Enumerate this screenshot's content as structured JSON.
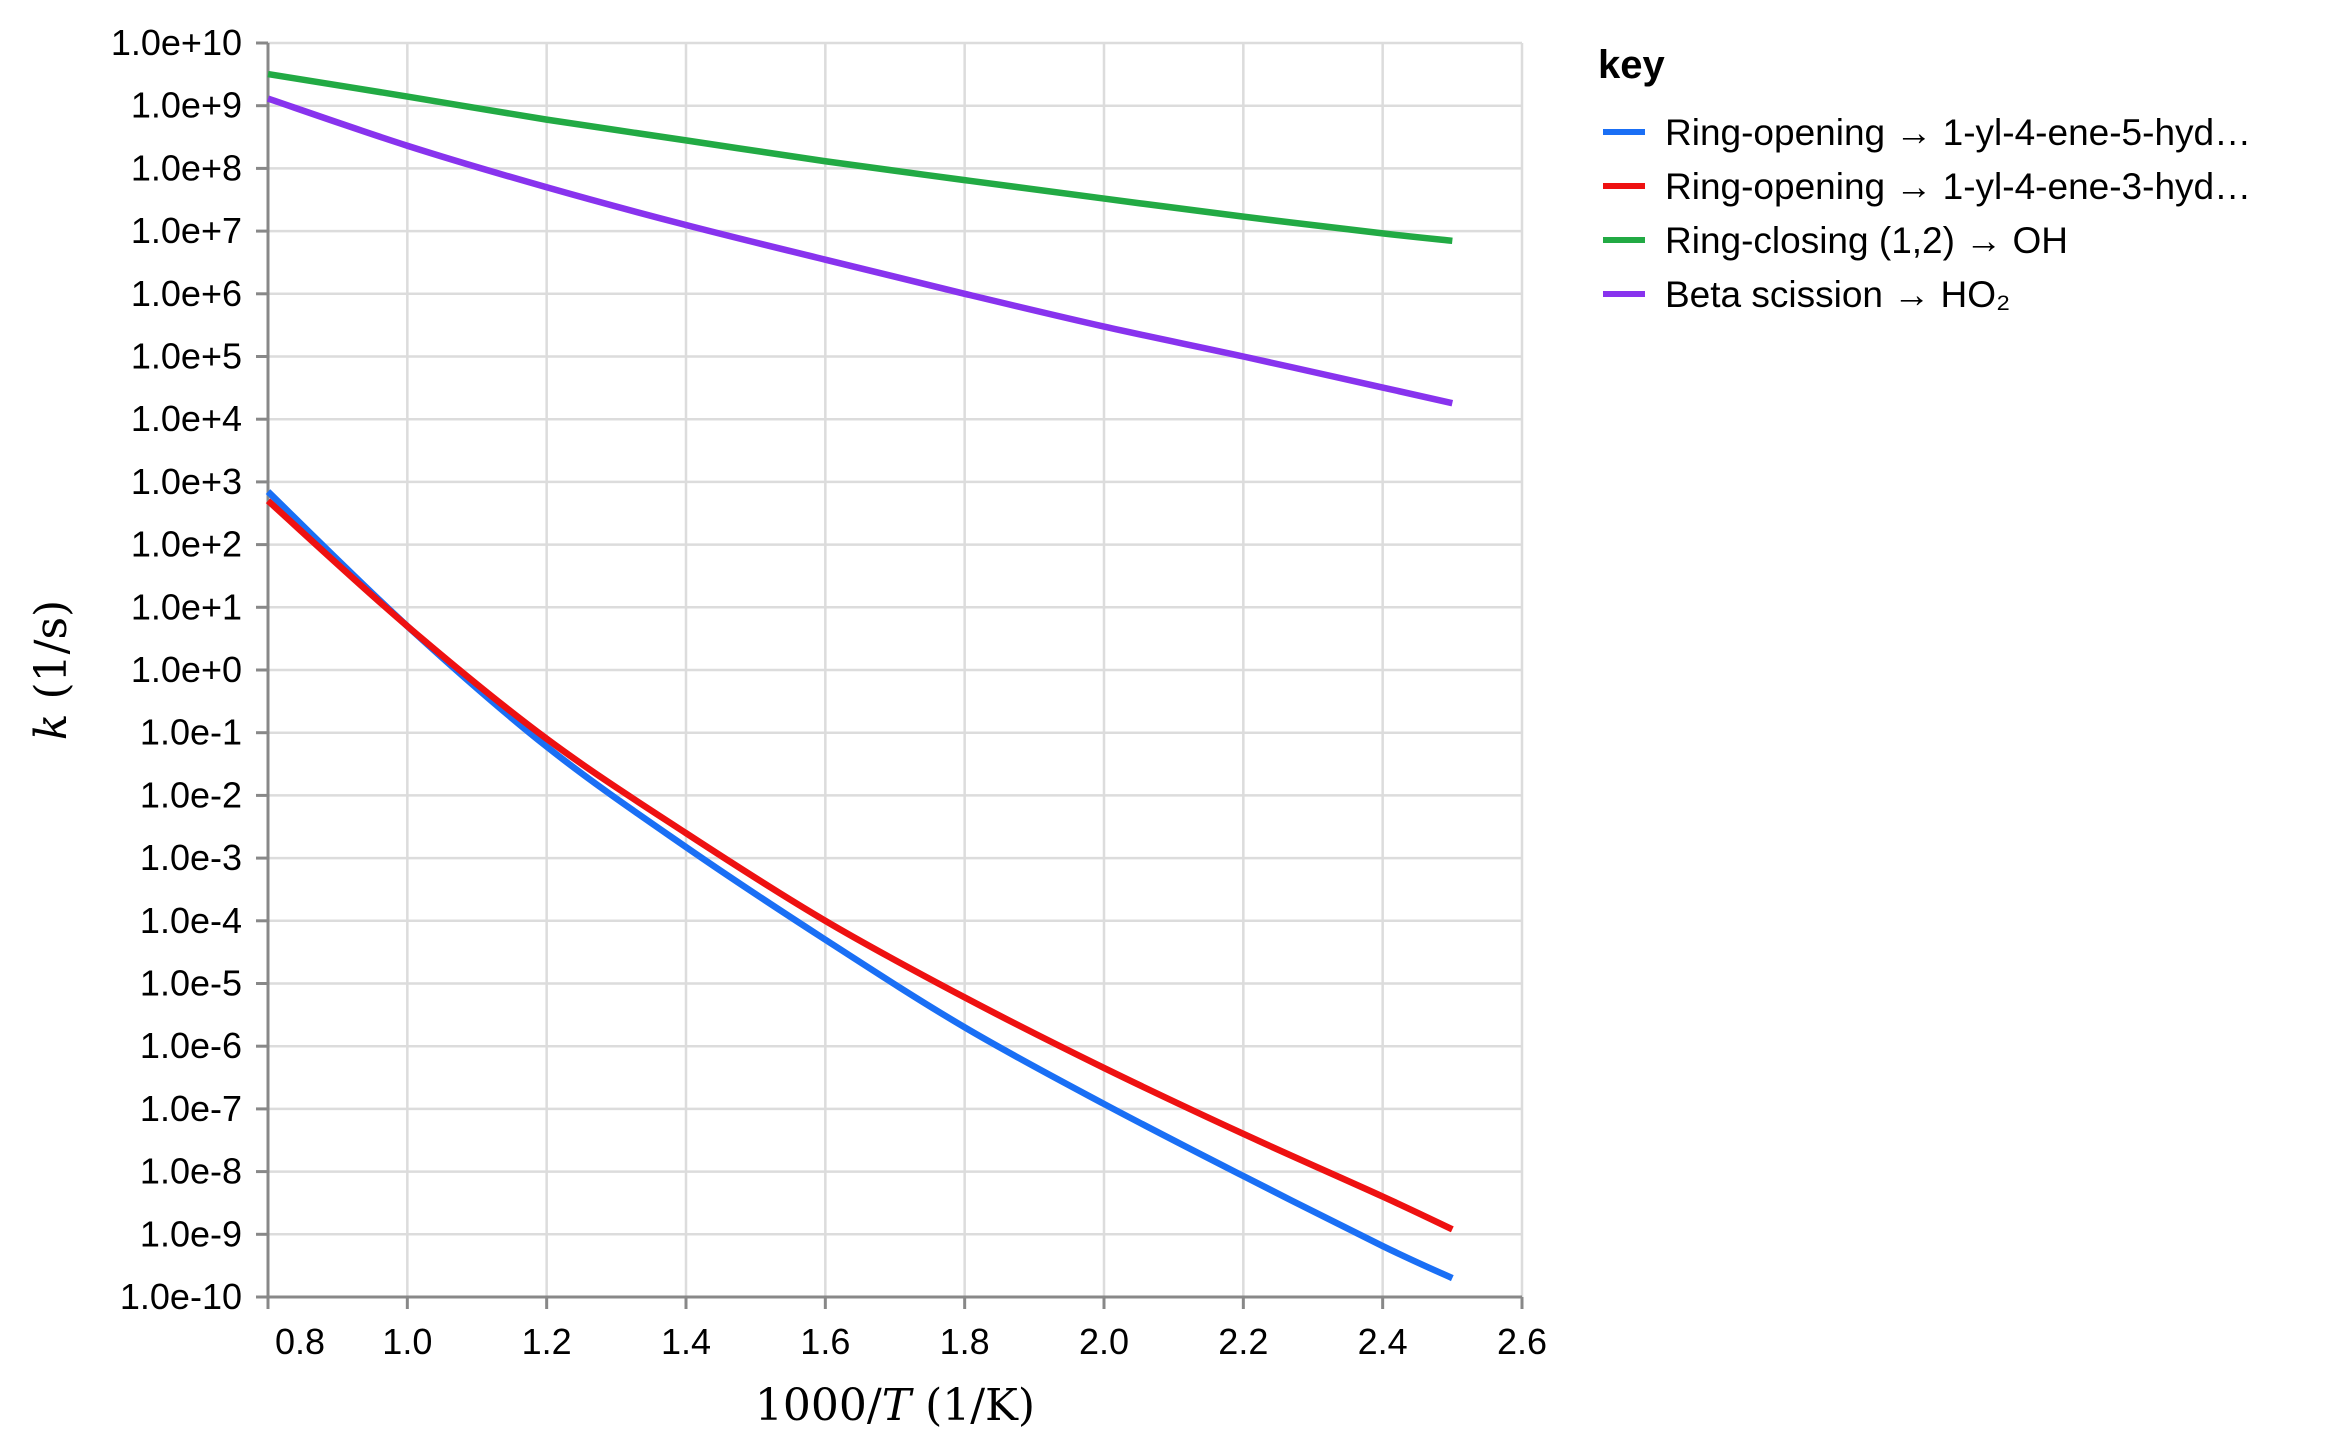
{
  "chart_data": {
    "type": "line",
    "title": "",
    "xlabel_prefix": "1000/",
    "xlabel_var": "T",
    "xlabel_suffix": " (1/K)",
    "ylabel_var": "k",
    "ylabel_suffix": " (1/s)",
    "yscale": "log",
    "xlim": [
      0.8,
      2.6
    ],
    "ylim": [
      1e-10,
      10000000000.0
    ],
    "x_ticks": [
      0.8,
      1.0,
      1.2,
      1.4,
      1.6,
      1.8,
      2.0,
      2.2,
      2.4,
      2.6
    ],
    "x_tick_labels": [
      "0.8",
      "1.0",
      "1.2",
      "1.4",
      "1.6",
      "1.8",
      "2.0",
      "2.2",
      "2.4",
      "2.6"
    ],
    "y_tick_exponents": [
      10,
      9,
      8,
      7,
      6,
      5,
      4,
      3,
      2,
      1,
      0,
      -1,
      -2,
      -3,
      -4,
      -5,
      -6,
      -7,
      -8,
      -9,
      -10
    ],
    "y_tick_labels": [
      "1.0e+10",
      "1.0e+9",
      "1.0e+8",
      "1.0e+7",
      "1.0e+6",
      "1.0e+5",
      "1.0e+4",
      "1.0e+3",
      "1.0e+2",
      "1.0e+1",
      "1.0e+0",
      "1.0e-1",
      "1.0e-2",
      "1.0e-3",
      "1.0e-4",
      "1.0e-5",
      "1.0e-6",
      "1.0e-7",
      "1.0e-8",
      "1.0e-9",
      "1.0e-10"
    ],
    "grid": true,
    "legend_title": "key",
    "legend_position": "right",
    "x": [
      0.8,
      1.0,
      1.2,
      1.4,
      1.6,
      1.8,
      2.0,
      2.2,
      2.4,
      2.5
    ],
    "series": [
      {
        "name": "Ring-opening → 1-yl-4-ene-5-hyd…",
        "color": "#1a6ff5",
        "values": [
          700.0,
          5.0,
          0.06,
          0.0015,
          5e-05,
          2e-06,
          1.2e-07,
          8.5e-09,
          6.5e-10,
          2e-10
        ]
      },
      {
        "name": "Ring-opening → 1-yl-4-ene-3-hyd…",
        "color": "#ee1111",
        "values": [
          500.0,
          5.0,
          0.08,
          0.0025,
          0.0001,
          6e-06,
          4.5e-07,
          4e-08,
          4e-09,
          1.2e-09
        ]
      },
      {
        "name": "Ring-closing (1,2) → OH",
        "color": "#22aa44",
        "values": [
          3200000000.0,
          1400000000.0,
          600000000.0,
          280000000.0,
          130000000.0,
          65000000.0,
          33000000.0,
          17000000.0,
          9200000.0,
          7000000.0
        ]
      },
      {
        "name": "Beta scission → HO₂",
        "color": "#8833ee",
        "values": [
          1300000000.0,
          230000000.0,
          50000000.0,
          12500000.0,
          3500000.0,
          1000000.0,
          300000.0,
          100000.0,
          32000.0,
          18000.0
        ]
      }
    ]
  }
}
